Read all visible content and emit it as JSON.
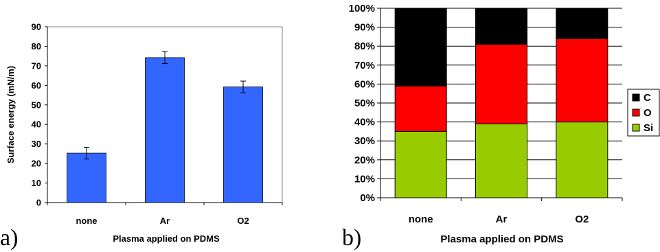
{
  "chart_data": [
    {
      "type": "bar",
      "panel_label": "a)",
      "categories": [
        "none",
        "Ar",
        "O2"
      ],
      "values": [
        25.3,
        74.2,
        59.2
      ],
      "error": [
        3.0,
        3.0,
        3.0
      ],
      "xlabel": "Plasma applied on PDMS",
      "ylabel": "Surface energy (mN/m)",
      "ylim": [
        0,
        90
      ],
      "yticks": [
        "0",
        "10",
        "20",
        "30",
        "40",
        "50",
        "60",
        "70",
        "80",
        "90"
      ],
      "bar_color": "#3366ff",
      "grid": false
    },
    {
      "type": "bar",
      "stacked": true,
      "percent": true,
      "panel_label": "b)",
      "categories": [
        "none",
        "Ar",
        "O2"
      ],
      "series": [
        {
          "name": "Si",
          "color": "#99cc00",
          "values": [
            35,
            39,
            40
          ]
        },
        {
          "name": "O",
          "color": "#ff0000",
          "values": [
            24,
            42,
            44
          ]
        },
        {
          "name": "C",
          "color": "#000000",
          "values": [
            41,
            19,
            16
          ]
        }
      ],
      "xlabel": "Plasma applied on PDMS",
      "ylabel": "",
      "ylim": [
        0,
        100
      ],
      "yticks": [
        "0%",
        "10%",
        "20%",
        "30%",
        "40%",
        "50%",
        "60%",
        "70%",
        "80%",
        "90%",
        "100%"
      ],
      "grid": true,
      "legend_position": "right",
      "legend_order": [
        "C",
        "O",
        "Si"
      ]
    }
  ]
}
